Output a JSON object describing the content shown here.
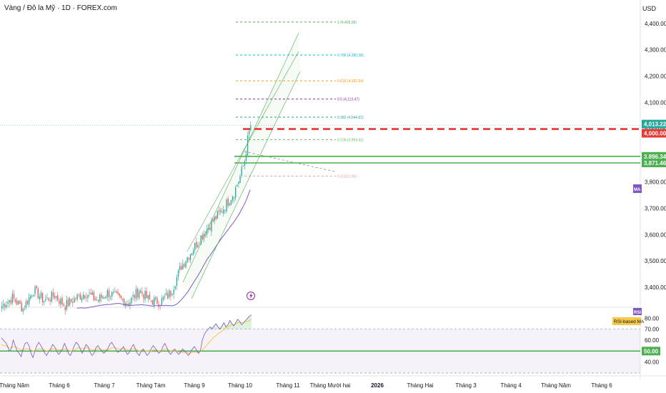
{
  "header": {
    "title": "Vàng / Đô la Mỹ · 1D · FOREX.com",
    "currency": "USD"
  },
  "colors": {
    "up": "#26a69a",
    "down": "#ef5350",
    "ma": "#7e57c2",
    "rsi": "#7e57c2",
    "rsi_ma": "#f7c948",
    "support": "#4caf50",
    "resistance_dashed": "#e53935",
    "price_label": "#26a69a",
    "rsi_band": "#7e57c2"
  },
  "indicators": {
    "ma_badge": "MA",
    "rsi_badge": "RSI",
    "rsi_ma_badge": "RSI-based MA",
    "lightning_icon": "lightning-icon"
  },
  "chart_data": [
    {
      "type": "candlestick",
      "title": "Vàng / Đô la Mỹ · 1D · FOREX.com",
      "ylabel": "USD",
      "ylim": [
        3330,
        4440
      ],
      "y_ticks": [
        "3,400.00",
        "3,500.00",
        "3,600.00",
        "3,700.00",
        "3,800.00",
        "3,900.00",
        "4,000.00",
        "4,100.00",
        "4,200.00",
        "4,300.00",
        "4,400.00"
      ],
      "x_labels": [
        "Tháng Năm",
        "Tháng 6",
        "Tháng 7",
        "Tháng Tám",
        "Tháng 9",
        "Tháng 10",
        "Tháng 11",
        "Tháng Mười hai",
        "2026",
        "Tháng Hai",
        "Tháng 3",
        "Tháng 4",
        "Tháng Năm",
        "Tháng 6"
      ],
      "price_labels": [
        {
          "value": 4013.22,
          "text": "4,013.22",
          "color": "#26a69a"
        },
        {
          "value": 4000.0,
          "text": "4,000.00",
          "color": "#e53935"
        },
        {
          "value": 3896.34,
          "text": "3,896.34",
          "color": "#4caf50"
        },
        {
          "value": 3871.46,
          "text": "3,871.46",
          "color": "#4caf50"
        }
      ],
      "fibonacci": [
        {
          "level": "1",
          "value": 4405.26,
          "text": "1 (4,405.26)",
          "color": "#4caf50"
        },
        {
          "level": "0.786",
          "value": 4280.38,
          "text": "0.786 (4,280.38)",
          "color": "#00bcd4"
        },
        {
          "level": "0.618",
          "value": 4182.34,
          "text": "0.618 (4,182.34)",
          "color": "#ff9800"
        },
        {
          "level": "0.5",
          "value": 4113.47,
          "text": "0.5 (4,113.47)",
          "color": "#9c27b0"
        },
        {
          "level": "0.382",
          "value": 4044.61,
          "text": "0.382 (4,044.61)",
          "color": "#26a69a"
        },
        {
          "level": "0.236",
          "value": 3959.41,
          "text": "0.236 (3,959.41)",
          "color": "#66bb6a"
        },
        {
          "level": "0",
          "value": 3821.66,
          "text": "0 (3,821.66)",
          "color": "#ef9a9a"
        }
      ],
      "ohlc_anchors": [
        {
          "x": 0,
          "close": 3330
        },
        {
          "x": 7,
          "close": 3360
        },
        {
          "x": 14,
          "close": 3320
        },
        {
          "x": 21,
          "close": 3390
        },
        {
          "x": 28,
          "close": 3350
        },
        {
          "x": 35,
          "close": 3370
        },
        {
          "x": 42,
          "close": 3330
        },
        {
          "x": 49,
          "close": 3360
        },
        {
          "x": 56,
          "close": 3380
        },
        {
          "x": 63,
          "close": 3350
        },
        {
          "x": 70,
          "close": 3380
        },
        {
          "x": 77,
          "close": 3360
        },
        {
          "x": 84,
          "close": 3340
        },
        {
          "x": 91,
          "close": 3390
        },
        {
          "x": 98,
          "close": 3350
        },
        {
          "x": 105,
          "close": 3345
        },
        {
          "x": 112,
          "close": 3380
        },
        {
          "x": 119,
          "close": 3480
        },
        {
          "x": 126,
          "close": 3540
        },
        {
          "x": 133,
          "close": 3600
        },
        {
          "x": 140,
          "close": 3650
        },
        {
          "x": 147,
          "close": 3700
        },
        {
          "x": 154,
          "close": 3760
        },
        {
          "x": 158,
          "close": 3820
        },
        {
          "x": 161,
          "close": 3880
        },
        {
          "x": 163,
          "close": 3960
        },
        {
          "x": 165,
          "close": 4013
        }
      ]
    },
    {
      "type": "line",
      "title": "RSI",
      "ylim": [
        30,
        90
      ],
      "y_ticks": [
        "40.00",
        "50.00",
        "60.00",
        "70.00",
        "80.00"
      ],
      "levels": [
        {
          "value": 70,
          "style": "dashed"
        },
        {
          "value": 50,
          "text": "50.00",
          "color": "#4caf50"
        },
        {
          "value": 30,
          "style": "dashed"
        }
      ],
      "series": [
        {
          "values": [
            62,
            60,
            58,
            55,
            50,
            52,
            60,
            55,
            50,
            48,
            45,
            52,
            57,
            58,
            55,
            48,
            44,
            50,
            55,
            58,
            55,
            52,
            48,
            46,
            50,
            52,
            56,
            54,
            50,
            47,
            49,
            52,
            57,
            53,
            48,
            46,
            50,
            55,
            58,
            56,
            52,
            48,
            52,
            56,
            54,
            49,
            46,
            48,
            53,
            55,
            52,
            50,
            48,
            50,
            52,
            56,
            58,
            55,
            52,
            49,
            50,
            52,
            54,
            50,
            47,
            49,
            53,
            56,
            52,
            48,
            46,
            50,
            52,
            49,
            46,
            48,
            52,
            55,
            53,
            50,
            48,
            50,
            54,
            57,
            53,
            49,
            47,
            50,
            52,
            49,
            47,
            49,
            52,
            50,
            48,
            46,
            49,
            52,
            54,
            51,
            48,
            50,
            60,
            65,
            68,
            70,
            72,
            70,
            73,
            75,
            72,
            70,
            73,
            76,
            72,
            74,
            78,
            75,
            73,
            76,
            79,
            77,
            74,
            76,
            78,
            80,
            82,
            83
          ]
        },
        {
          "values": [
            56,
            55,
            55,
            54,
            53,
            53,
            54,
            54,
            53,
            52,
            51,
            51,
            52,
            52,
            52,
            51,
            50,
            50,
            51,
            52,
            52,
            52,
            51,
            50,
            50,
            51,
            52,
            52,
            52,
            51,
            51,
            51,
            52,
            52,
            51,
            50,
            50,
            51,
            52,
            53,
            53,
            52,
            52,
            53,
            53,
            52,
            51,
            51,
            51,
            52,
            52,
            51,
            51,
            51,
            51,
            52,
            53,
            53,
            53,
            52,
            52,
            52,
            52,
            52,
            51,
            51,
            52,
            52,
            52,
            51,
            50,
            50,
            51,
            50,
            50,
            50,
            50,
            51,
            51,
            51,
            50,
            50,
            51,
            52,
            52,
            51,
            50,
            50,
            50,
            50,
            49,
            49,
            49,
            49,
            49,
            48,
            48,
            49,
            49,
            49,
            49,
            50,
            51,
            53,
            55,
            57,
            59,
            61,
            63,
            64,
            66,
            67,
            68,
            70,
            71,
            72,
            73,
            74,
            74,
            75,
            76,
            76,
            76,
            76,
            77,
            77,
            78,
            79
          ]
        }
      ]
    }
  ]
}
